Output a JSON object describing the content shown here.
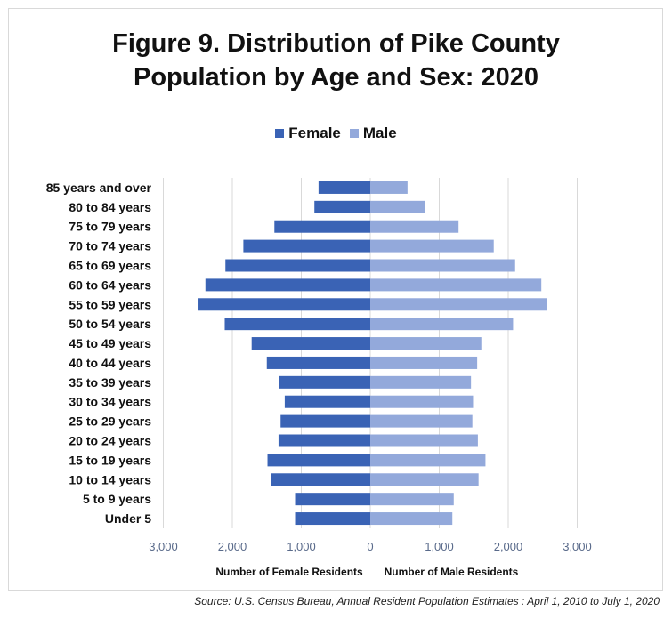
{
  "chart_data": {
    "type": "bar",
    "orientation": "horizontal-pyramid",
    "title": "Figure 9. Distribution of Pike County Population by Age and Sex: 2020",
    "title_lines": [
      "Figure 9. Distribution of Pike County",
      "Population by Age and Sex: 2020"
    ],
    "categories": [
      "85 years and over",
      "80 to 84 years",
      "75 to 79 years",
      "70 to 74 years",
      "65 to 69 years",
      "60 to 64 years",
      "55 to 59 years",
      "50 to 54 years",
      "45 to 49 years",
      "40 to 44 years",
      "35 to 39 years",
      "30 to 34 years",
      "25 to 29 years",
      "20 to 24 years",
      "15 to 19 years",
      "10 to 14 years",
      "5 to 9 years",
      "Under 5"
    ],
    "series": [
      {
        "name": "Female",
        "color": "#3a63b5",
        "values": [
          750,
          810,
          1390,
          1840,
          2100,
          2390,
          2490,
          2110,
          1720,
          1500,
          1320,
          1240,
          1300,
          1330,
          1490,
          1440,
          1090,
          1090
        ]
      },
      {
        "name": "Male",
        "color": "#93a9db",
        "values": [
          540,
          800,
          1280,
          1790,
          2100,
          2480,
          2560,
          2070,
          1610,
          1550,
          1460,
          1490,
          1480,
          1560,
          1670,
          1570,
          1210,
          1190
        ]
      }
    ],
    "xlim": [
      -3000,
      3000
    ],
    "x_ticks": [
      -3000,
      -2000,
      -1000,
      0,
      1000,
      2000,
      3000
    ],
    "x_tick_labels": [
      "3,000",
      "2,000",
      "1,000",
      "0",
      "1,000",
      "2,000",
      "3,000"
    ],
    "xlabel_left": "Number of Female Residents",
    "xlabel_right": "Number of Male Residents",
    "legend_position": "top",
    "grid": true
  },
  "source": "Source: U.S. Census Bureau, Annual Resident Population Estimates : April 1, 2010 to July 1, 2020"
}
